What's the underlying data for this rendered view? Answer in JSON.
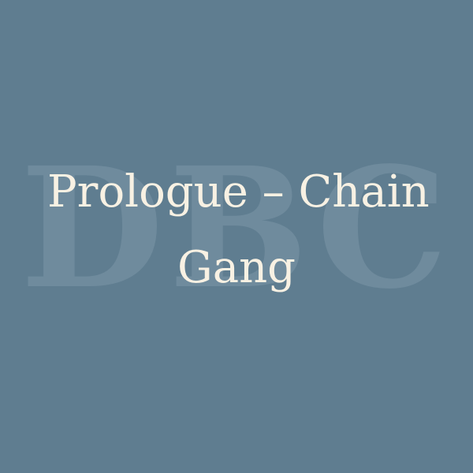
{
  "watermark": {
    "text": "DBC",
    "color": "#6f8b9d"
  },
  "title": {
    "line1": "Prologue – Chain",
    "line2": "Gang",
    "color": "#f8f1e3"
  },
  "background": {
    "color": "#5f7d90"
  }
}
